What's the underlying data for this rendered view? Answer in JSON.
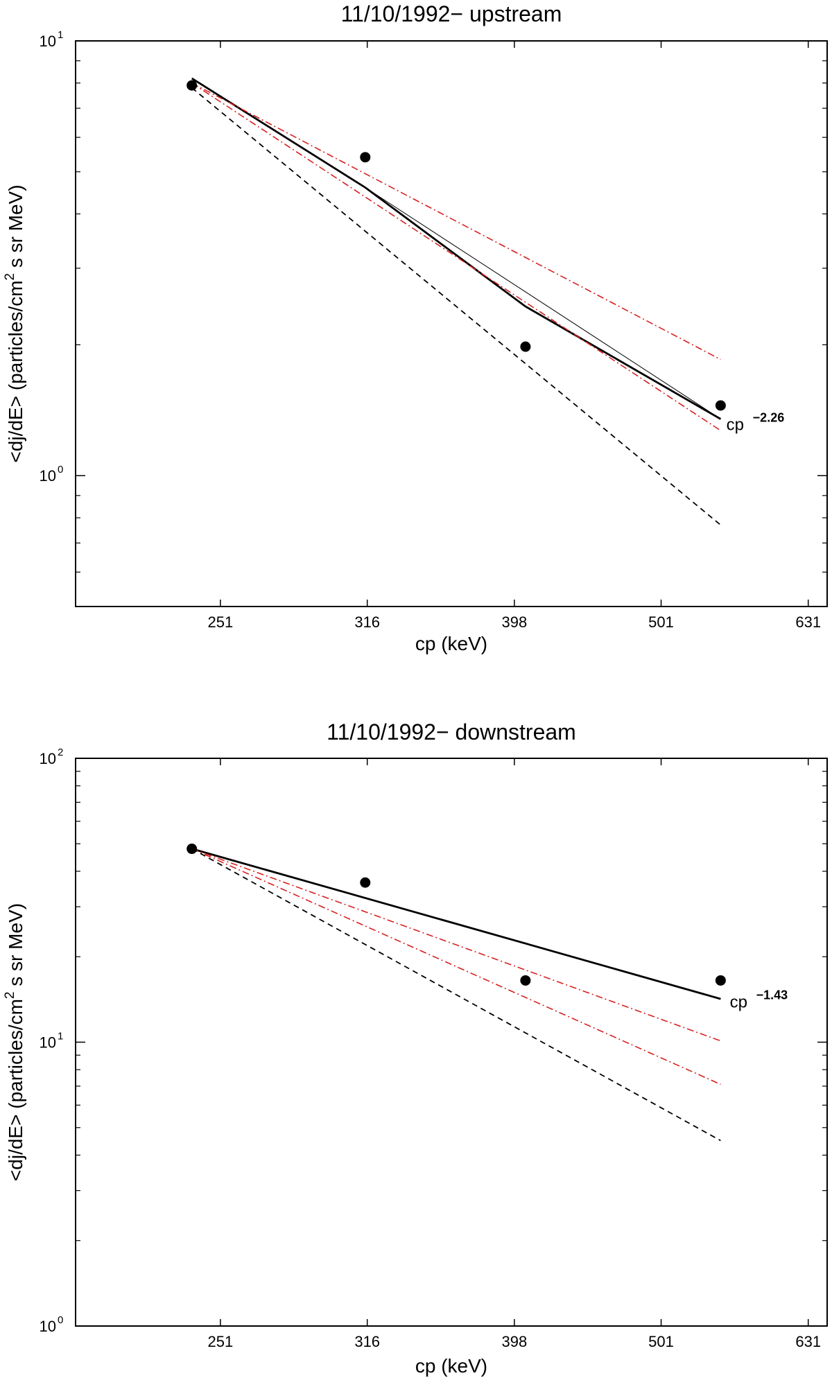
{
  "chart_data": [
    {
      "type": "line",
      "title": "11/10/1992− upstream",
      "xlabel": "cp (keV)",
      "ylabel": "<dj/dE> (particles/cm",
      "ylabel_sup": "2",
      "ylabel_tail": " s sr MeV)",
      "xscale": "log",
      "yscale": "log",
      "xlim": [
        200,
        650
      ],
      "ylim": [
        0.5,
        10
      ],
      "x_ticks": [
        251,
        316,
        398,
        501,
        631
      ],
      "x_tick_labels": [
        "251",
        "316",
        "398",
        "501",
        "631"
      ],
      "y_ticks": [
        {
          "value": 10,
          "base": "10",
          "exp": "1"
        },
        {
          "value": 1,
          "base": "10",
          "exp": "0"
        }
      ],
      "minor_y_ticks": [
        0.6,
        0.7,
        0.8,
        0.9,
        2,
        3,
        4,
        5,
        6,
        7,
        8,
        9
      ],
      "points": {
        "x": [
          240,
          315,
          405,
          550
        ],
        "y": [
          7.9,
          5.4,
          1.98,
          1.45
        ]
      },
      "lines": [
        {
          "style": "solid-thick",
          "color": "#000000",
          "x": [
            240,
            315
          ],
          "y": [
            8.2,
            4.6
          ]
        },
        {
          "style": "solid-thick",
          "color": "#000000",
          "x": [
            315,
            405
          ],
          "y": [
            4.6,
            2.45
          ]
        },
        {
          "style": "solid-thin",
          "color": "#000000",
          "x": [
            315,
            550
          ],
          "y": [
            4.6,
            1.35
          ]
        },
        {
          "style": "solid-thick",
          "color": "#000000",
          "x": [
            405,
            550
          ],
          "y": [
            2.45,
            1.35
          ]
        },
        {
          "style": "dashdot",
          "color": "#d62020",
          "x": [
            240,
            550
          ],
          "y": [
            8.0,
            1.85
          ]
        },
        {
          "style": "dashdot",
          "color": "#d62020",
          "x": [
            240,
            550
          ],
          "y": [
            8.0,
            1.27
          ]
        },
        {
          "style": "dashed",
          "color": "#000000",
          "x": [
            240,
            550
          ],
          "y": [
            7.8,
            0.77
          ]
        }
      ],
      "annotation": {
        "text": "cp",
        "exp": "−2.26",
        "x": 555,
        "y": 1.35
      }
    },
    {
      "type": "line",
      "title": "11/10/1992− downstream",
      "xlabel": "cp (keV)",
      "ylabel": "<dj/dE> (particles/cm",
      "ylabel_sup": "2",
      "ylabel_tail": " s sr MeV)",
      "xscale": "log",
      "yscale": "log",
      "xlim": [
        200,
        650
      ],
      "ylim": [
        1,
        100
      ],
      "x_ticks": [
        251,
        316,
        398,
        501,
        631
      ],
      "x_tick_labels": [
        "251",
        "316",
        "398",
        "501",
        "631"
      ],
      "y_ticks": [
        {
          "value": 100,
          "base": "10",
          "exp": "2"
        },
        {
          "value": 10,
          "base": "10",
          "exp": "1"
        },
        {
          "value": 1,
          "base": "10",
          "exp": "0"
        }
      ],
      "minor_y_ticks": [
        2,
        3,
        4,
        5,
        6,
        7,
        8,
        9,
        20,
        30,
        40,
        50,
        60,
        70,
        80,
        90
      ],
      "points": {
        "x": [
          240,
          315,
          405,
          550
        ],
        "y": [
          48,
          36.5,
          16.5,
          16.5
        ]
      },
      "lines": [
        {
          "style": "solid-thick",
          "color": "#000000",
          "x": [
            240,
            550
          ],
          "y": [
            48,
            14.2
          ]
        },
        {
          "style": "dashdot",
          "color": "#d62020",
          "x": [
            240,
            550
          ],
          "y": [
            48,
            10.1
          ]
        },
        {
          "style": "dashdot",
          "color": "#d62020",
          "x": [
            240,
            550
          ],
          "y": [
            48,
            7.1
          ]
        },
        {
          "style": "dashed",
          "color": "#000000",
          "x": [
            240,
            550
          ],
          "y": [
            48,
            4.5
          ]
        }
      ],
      "annotation": {
        "text": "cp",
        "exp": "−1.43",
        "x": 558,
        "y": 14.5
      }
    }
  ]
}
